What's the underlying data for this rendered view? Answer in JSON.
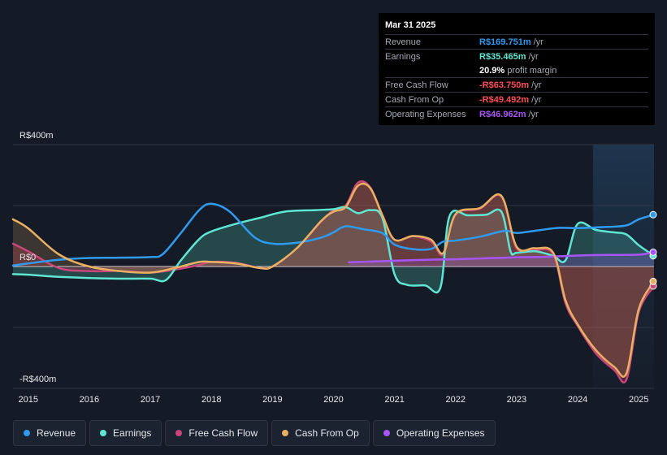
{
  "tooltip": {
    "date": "Mar 31 2025",
    "rows": [
      {
        "label": "Revenue",
        "value": "R$169.751m",
        "unit": "/yr",
        "color": "#2f9bf0"
      },
      {
        "label": "Earnings",
        "value": "R$35.465m",
        "unit": "/yr",
        "color": "#5ee6d2"
      },
      {
        "label": "",
        "value": "20.9%",
        "unit": "profit margin",
        "color": "#ffffff"
      },
      {
        "label": "Free Cash Flow",
        "value": "-R$63.750m",
        "unit": "/yr",
        "color": "#ff4d55"
      },
      {
        "label": "Cash From Op",
        "value": "-R$49.492m",
        "unit": "/yr",
        "color": "#ff4d55"
      },
      {
        "label": "Operating Expenses",
        "value": "R$46.962m",
        "unit": "/yr",
        "color": "#a855f7"
      }
    ]
  },
  "legend": [
    {
      "label": "Revenue",
      "color": "#2f9bf0"
    },
    {
      "label": "Earnings",
      "color": "#5ee6d2"
    },
    {
      "label": "Free Cash Flow",
      "color": "#c8467a"
    },
    {
      "label": "Cash From Op",
      "color": "#e9b062"
    },
    {
      "label": "Operating Expenses",
      "color": "#a855f7"
    }
  ],
  "chart_data": {
    "type": "line",
    "ylim": [
      -400,
      400
    ],
    "y_labels": [
      {
        "value": 400,
        "label": "R$400m"
      },
      {
        "value": 0,
        "label": "R$0"
      },
      {
        "value": -400,
        "label": "-R$400m"
      }
    ],
    "xlim": [
      2014.75,
      2025.25
    ],
    "x_ticks": [
      {
        "value": 2015,
        "label": "2015"
      },
      {
        "value": 2016,
        "label": "2016"
      },
      {
        "value": 2017,
        "label": "2017"
      },
      {
        "value": 2018,
        "label": "2018"
      },
      {
        "value": 2019,
        "label": "2019"
      },
      {
        "value": 2020,
        "label": "2020"
      },
      {
        "value": 2021,
        "label": "2021"
      },
      {
        "value": 2022,
        "label": "2022"
      },
      {
        "value": 2023,
        "label": "2023"
      },
      {
        "value": 2024,
        "label": "2024"
      },
      {
        "value": 2025,
        "label": "2025"
      }
    ],
    "grid": true,
    "highlight_from": 2024.25,
    "series": [
      {
        "name": "Revenue",
        "color": "#2f9bf0",
        "fill": false,
        "points": [
          [
            2014.75,
            3
          ],
          [
            2015,
            10
          ],
          [
            2015.5,
            22
          ],
          [
            2016,
            28
          ],
          [
            2016.5,
            29
          ],
          [
            2017,
            31
          ],
          [
            2017.2,
            40
          ],
          [
            2017.5,
            110
          ],
          [
            2017.8,
            185
          ],
          [
            2018,
            206
          ],
          [
            2018.3,
            180
          ],
          [
            2018.7,
            97
          ],
          [
            2019,
            75
          ],
          [
            2019.4,
            78
          ],
          [
            2019.8,
            95
          ],
          [
            2020,
            112
          ],
          [
            2020.2,
            132
          ],
          [
            2020.5,
            122
          ],
          [
            2020.8,
            110
          ],
          [
            2021,
            72
          ],
          [
            2021.3,
            57
          ],
          [
            2021.6,
            58
          ],
          [
            2021.8,
            82
          ],
          [
            2022,
            85
          ],
          [
            2022.4,
            98
          ],
          [
            2022.8,
            117
          ],
          [
            2023,
            110
          ],
          [
            2023.4,
            120
          ],
          [
            2023.7,
            127
          ],
          [
            2024,
            126
          ],
          [
            2024.5,
            130
          ],
          [
            2024.8,
            135
          ],
          [
            2025,
            155
          ],
          [
            2025.25,
            170
          ]
        ]
      },
      {
        "name": "Earnings",
        "color": "#5ee6d2",
        "fill": true,
        "points": [
          [
            2014.75,
            -25
          ],
          [
            2015,
            -27
          ],
          [
            2015.5,
            -34
          ],
          [
            2016,
            -38
          ],
          [
            2016.5,
            -40
          ],
          [
            2017,
            -40
          ],
          [
            2017.25,
            -45
          ],
          [
            2017.5,
            20
          ],
          [
            2017.8,
            90
          ],
          [
            2018,
            115
          ],
          [
            2018.4,
            140
          ],
          [
            2018.8,
            160
          ],
          [
            2019.2,
            180
          ],
          [
            2019.7,
            185
          ],
          [
            2020,
            188
          ],
          [
            2020.2,
            195
          ],
          [
            2020.4,
            175
          ],
          [
            2020.6,
            185
          ],
          [
            2020.8,
            160
          ],
          [
            2021,
            -25
          ],
          [
            2021.2,
            -60
          ],
          [
            2021.5,
            -62
          ],
          [
            2021.75,
            -70
          ],
          [
            2021.9,
            165
          ],
          [
            2022.2,
            168
          ],
          [
            2022.5,
            170
          ],
          [
            2022.75,
            180
          ],
          [
            2022.9,
            50
          ],
          [
            2023,
            45
          ],
          [
            2023.3,
            50
          ],
          [
            2023.6,
            35
          ],
          [
            2023.8,
            20
          ],
          [
            2024,
            140
          ],
          [
            2024.3,
            120
          ],
          [
            2024.6,
            112
          ],
          [
            2024.8,
            105
          ],
          [
            2025,
            70
          ],
          [
            2025.25,
            35
          ]
        ]
      },
      {
        "name": "Free Cash Flow",
        "color": "#c8467a",
        "fill": true,
        "points": [
          [
            2014.75,
            75
          ],
          [
            2015,
            50
          ],
          [
            2015.5,
            -5
          ],
          [
            2016,
            -15
          ],
          [
            2016.5,
            -15
          ],
          [
            2017,
            -20
          ],
          [
            2017.4,
            -10
          ],
          [
            2017.8,
            5
          ],
          [
            2018,
            15
          ],
          [
            2018.4,
            12
          ],
          [
            2018.8,
            -5
          ],
          [
            2019,
            0
          ],
          [
            2019.4,
            60
          ],
          [
            2019.8,
            148
          ],
          [
            2020,
            185
          ],
          [
            2020.2,
            200
          ],
          [
            2020.4,
            275
          ],
          [
            2020.6,
            260
          ],
          [
            2020.8,
            170
          ],
          [
            2021,
            88
          ],
          [
            2021.3,
            100
          ],
          [
            2021.6,
            82
          ],
          [
            2021.8,
            40
          ],
          [
            2022,
            170
          ],
          [
            2022.4,
            190
          ],
          [
            2022.75,
            230
          ],
          [
            2023,
            60
          ],
          [
            2023.3,
            55
          ],
          [
            2023.6,
            40
          ],
          [
            2023.8,
            -120
          ],
          [
            2024,
            -195
          ],
          [
            2024.3,
            -285
          ],
          [
            2024.6,
            -340
          ],
          [
            2024.8,
            -370
          ],
          [
            2025,
            -150
          ],
          [
            2025.25,
            -64
          ]
        ]
      },
      {
        "name": "Cash From Op",
        "color": "#e9b062",
        "fill": true,
        "points": [
          [
            2014.75,
            155
          ],
          [
            2015,
            125
          ],
          [
            2015.5,
            40
          ],
          [
            2016,
            0
          ],
          [
            2016.5,
            -15
          ],
          [
            2017,
            -20
          ],
          [
            2017.4,
            -5
          ],
          [
            2017.8,
            15
          ],
          [
            2018,
            15
          ],
          [
            2018.4,
            10
          ],
          [
            2018.8,
            -5
          ],
          [
            2019,
            0
          ],
          [
            2019.4,
            60
          ],
          [
            2019.8,
            150
          ],
          [
            2020,
            180
          ],
          [
            2020.2,
            195
          ],
          [
            2020.4,
            265
          ],
          [
            2020.6,
            258
          ],
          [
            2020.8,
            168
          ],
          [
            2021,
            88
          ],
          [
            2021.3,
            100
          ],
          [
            2021.6,
            88
          ],
          [
            2021.8,
            45
          ],
          [
            2022,
            172
          ],
          [
            2022.4,
            192
          ],
          [
            2022.75,
            232
          ],
          [
            2023,
            65
          ],
          [
            2023.3,
            60
          ],
          [
            2023.6,
            45
          ],
          [
            2023.8,
            -110
          ],
          [
            2024,
            -190
          ],
          [
            2024.3,
            -275
          ],
          [
            2024.6,
            -330
          ],
          [
            2024.8,
            -350
          ],
          [
            2025,
            -140
          ],
          [
            2025.25,
            -49
          ]
        ]
      },
      {
        "name": "Operating Expenses",
        "color": "#a855f7",
        "fill": true,
        "points": [
          [
            2020.25,
            14
          ],
          [
            2020.6,
            16
          ],
          [
            2021,
            19
          ],
          [
            2021.5,
            22
          ],
          [
            2022,
            24
          ],
          [
            2022.5,
            27
          ],
          [
            2023,
            30
          ],
          [
            2023.5,
            32
          ],
          [
            2024,
            36
          ],
          [
            2024.5,
            38
          ],
          [
            2025,
            39
          ],
          [
            2025.25,
            47
          ]
        ]
      }
    ]
  }
}
